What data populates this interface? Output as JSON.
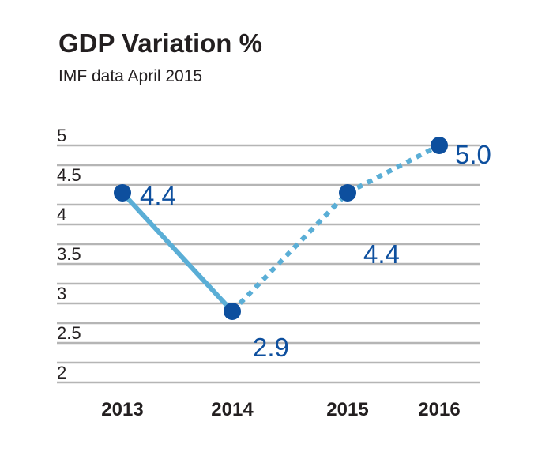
{
  "chart_data": {
    "type": "line",
    "title": "GDP Variation %",
    "subtitle": "IMF data April 2015",
    "xlabel": "",
    "ylabel": "",
    "categories": [
      "2013",
      "2014",
      "2015",
      "2016"
    ],
    "series": [
      {
        "values": [
          4.4,
          2.9,
          4.4,
          5.0
        ],
        "data_labels": [
          "4.4",
          "2.9",
          "4.4",
          "5.0"
        ],
        "line_style": [
          "solid",
          "dotted",
          "dotted"
        ]
      }
    ],
    "yticks": [
      "5",
      "4.5",
      "4",
      "3.5",
      "3",
      "2.5",
      "2"
    ],
    "ylim": [
      2,
      5
    ],
    "grid": true,
    "legend": "none",
    "colors": {
      "line": "#5aaed6",
      "marker": "#0d4f9e",
      "label": "#0d4f9e",
      "grid": "#b5b5b5",
      "text": "#231f20"
    }
  }
}
